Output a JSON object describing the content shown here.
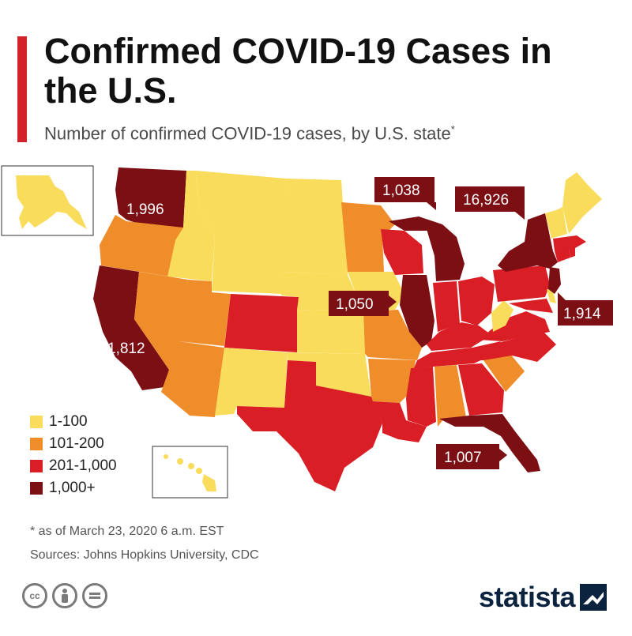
{
  "header": {
    "title": "Confirmed COVID-19 Cases in the U.S.",
    "subtitle": "Number of confirmed COVID-19 cases, by U.S. state",
    "subtitle_mark": "*"
  },
  "colors": {
    "accent": "#d2232a",
    "cat_1_100": "#f9dc5c",
    "cat_101_200": "#ef8d2b",
    "cat_201_1000": "#d91e25",
    "cat_1000_plus": "#7b0f14"
  },
  "legend": [
    {
      "label": "1-100",
      "color": "#f9dc5c"
    },
    {
      "label": "101-200",
      "color": "#ef8d2b"
    },
    {
      "label": "201-1,000",
      "color": "#d91e25"
    },
    {
      "label": "1,000+",
      "color": "#7b0f14"
    }
  ],
  "callouts": {
    "washington": "1,996",
    "wisconsin": "1,038",
    "new_york": "16,926",
    "illinois": "1,050",
    "new_jersey": "1,914",
    "california": "1,812",
    "florida": "1,007"
  },
  "footer": {
    "footnote": "* as of March 23, 2020 6 a.m. EST",
    "sources": "Sources: Johns Hopkins University, CDC",
    "brand": "statista"
  },
  "icons": [
    "cc-icon",
    "attribution-icon",
    "no-derivatives-icon",
    "statista-logo-icon"
  ]
}
